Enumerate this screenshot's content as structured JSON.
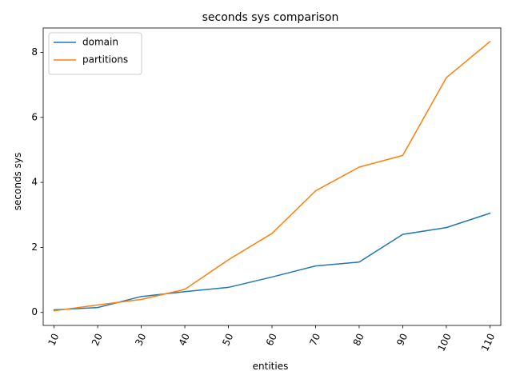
{
  "chart_data": {
    "type": "line",
    "title": "seconds sys comparison",
    "xlabel": "entities",
    "ylabel": "seconds sys",
    "x": [
      10,
      20,
      30,
      40,
      50,
      60,
      70,
      80,
      90,
      100,
      110
    ],
    "x_tick_labels": [
      "10",
      "20",
      "30",
      "40",
      "50",
      "60",
      "70",
      "80",
      "90",
      "100",
      "110"
    ],
    "y_ticks": [
      0,
      2,
      4,
      6,
      8
    ],
    "y_tick_labels": [
      "0",
      "2",
      "4",
      "6",
      "8"
    ],
    "ylim": [
      -0.4,
      8.75
    ],
    "grid": false,
    "legend_position": "top-left",
    "series": [
      {
        "name": "domain",
        "color": "#1f77b4",
        "values": [
          0.08,
          0.15,
          0.49,
          0.64,
          0.77,
          1.09,
          1.43,
          1.55,
          2.4,
          2.61,
          3.05
        ]
      },
      {
        "name": "partitions",
        "color": "#ff7f0e",
        "values": [
          0.05,
          0.23,
          0.4,
          0.71,
          1.62,
          2.43,
          3.74,
          4.47,
          4.83,
          7.22,
          8.33
        ]
      }
    ]
  }
}
